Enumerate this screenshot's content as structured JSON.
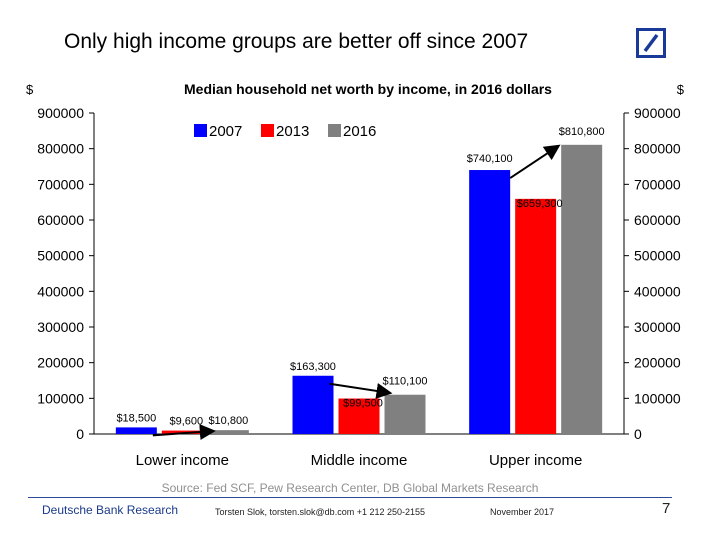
{
  "slide": {
    "title": "Only high income groups are better off since 2007",
    "logo_icon": "deutsche-bank-logo-icon"
  },
  "chart_data": {
    "type": "bar",
    "title": "Median household net worth by income, in 2016 dollars",
    "left_unit": "$",
    "right_unit": "$",
    "categories": [
      "Lower income",
      "Middle income",
      "Upper income"
    ],
    "series": [
      {
        "name": "2007",
        "color": "#0000ff",
        "values": [
          18500,
          163300,
          740100
        ],
        "labels": [
          "$18,500",
          "$163,300",
          "$740,100"
        ]
      },
      {
        "name": "2013",
        "color": "#ff0000",
        "values": [
          9600,
          99500,
          659300
        ],
        "labels": [
          "$9,600",
          "$99,500",
          "$659,300"
        ]
      },
      {
        "name": "2016",
        "color": "#808080",
        "values": [
          10800,
          110100,
          810800
        ],
        "labels": [
          "$10,800",
          "$110,100",
          "$810,800"
        ]
      }
    ],
    "ylim": [
      0,
      900000
    ],
    "yticks": [
      "0",
      "100000",
      "200000",
      "300000",
      "400000",
      "500000",
      "600000",
      "700000",
      "800000",
      "900000"
    ],
    "legend_position": "top-left",
    "grid": false,
    "source": "Source: Fed SCF, Pew Research Center, DB Global Markets Research"
  },
  "footer": {
    "brand": "Deutsche Bank Research",
    "contact": "Torsten Slok, torsten.slok@db.com  +1 212 250-2155",
    "date": "November  2017",
    "page": "7"
  }
}
